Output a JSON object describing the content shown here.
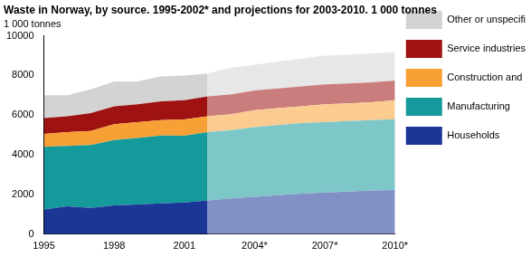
{
  "chart_data": {
    "type": "area",
    "title": "Waste in Norway, by source. 1995-2002* and projections for 2003-2010. 1 000 tonnes",
    "ylabel": "1 000 tonnes",
    "stacked": true,
    "grid": false,
    "legend": "right",
    "x": [
      1995,
      1996,
      1997,
      1998,
      1999,
      2000,
      2001,
      2002,
      2003,
      2004,
      2005,
      2006,
      2007,
      2008,
      2009,
      2010
    ],
    "xlim": [
      1995,
      2010
    ],
    "xticks": [
      {
        "value": 1995,
        "label": "1995"
      },
      {
        "value": 1998,
        "label": "1998"
      },
      {
        "value": 2001,
        "label": "2001"
      },
      {
        "value": 2004,
        "label": "2004*"
      },
      {
        "value": 2007,
        "label": "2007*"
      },
      {
        "value": 2010,
        "label": "2010*"
      }
    ],
    "ylim": [
      0,
      10000
    ],
    "yticks": [
      0,
      2000,
      4000,
      6000,
      8000,
      10000
    ],
    "series": [
      {
        "name": "Households",
        "color": "#1a3696",
        "values": [
          1250,
          1400,
          1320,
          1450,
          1500,
          1550,
          1600,
          1700,
          1800,
          1880,
          1960,
          2040,
          2100,
          2150,
          2200,
          2230
        ]
      },
      {
        "name": "Manufacturing",
        "color": "#159a9c",
        "values": [
          3150,
          3050,
          3180,
          3300,
          3350,
          3430,
          3360,
          3450,
          3450,
          3520,
          3540,
          3560,
          3550,
          3550,
          3550,
          3570
        ]
      },
      {
        "name": "Construction and demolition",
        "color": "#f7a035",
        "values": [
          650,
          700,
          700,
          800,
          800,
          770,
          820,
          800,
          800,
          850,
          850,
          850,
          900,
          900,
          900,
          950
        ]
      },
      {
        "name": "Service industries",
        "color": "#9e1212",
        "values": [
          800,
          800,
          900,
          900,
          900,
          950,
          970,
          1000,
          1000,
          1000,
          1000,
          1000,
          1000,
          1000,
          1000,
          1000
        ]
      },
      {
        "name": "Other or unspecified",
        "color": "#d3d3d3",
        "values": [
          1150,
          1050,
          1200,
          1250,
          1150,
          1250,
          1250,
          1150,
          1350,
          1300,
          1350,
          1400,
          1450,
          1450,
          1450,
          1450
        ]
      }
    ]
  }
}
